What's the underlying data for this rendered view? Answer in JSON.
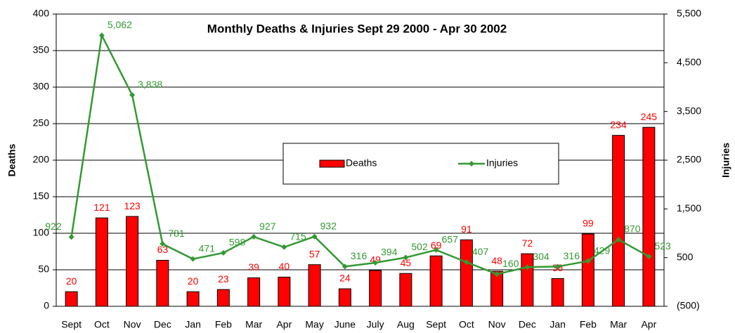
{
  "chart_data": {
    "type": "bar_line",
    "title": "Monthly Deaths & Injuries Sept 29 2000 - Apr 30  2002",
    "y_label": "Deaths",
    "y2_label": "Injuries",
    "categories": [
      "Sept",
      "Oct",
      "Nov",
      "Dec",
      "Jan",
      "Feb",
      "Mar",
      "Apr",
      "May",
      "June",
      "July",
      "Aug",
      "Sept",
      "Oct",
      "Nov",
      "Dec",
      "Jan",
      "Feb",
      "Mar",
      "Apr"
    ],
    "series": [
      {
        "name": "Deaths",
        "type": "bar",
        "color": "#ff0000",
        "values": [
          20,
          121,
          123,
          63,
          20,
          23,
          39,
          40,
          57,
          24,
          49,
          45,
          69,
          91,
          48,
          72,
          38,
          99,
          234,
          245
        ]
      },
      {
        "name": "Injuries",
        "type": "line",
        "axis": "y2",
        "color": "#339933",
        "values": [
          922,
          5062,
          3838,
          781,
          471,
          598,
          927,
          715,
          932,
          316,
          394,
          502,
          657,
          407,
          160,
          304,
          316,
          429,
          870,
          523
        ],
        "value_labels": [
          "922",
          "5,062",
          "3,838",
          "781",
          "471",
          "598",
          "927",
          "715",
          "932",
          "316",
          "394",
          "502",
          "657",
          "407",
          "160",
          "304",
          "316",
          "429",
          "870",
          "523"
        ]
      }
    ],
    "ylim": [
      0,
      400
    ],
    "yticks": [
      0,
      50,
      100,
      150,
      200,
      250,
      300,
      350,
      400
    ],
    "y2lim": [
      -500,
      5500
    ],
    "y2ticks": [
      {
        "value": -500,
        "label": "(500)"
      },
      500,
      {
        "value": 1500,
        "label": "1,500"
      },
      {
        "value": 2500,
        "label": "2,500"
      },
      {
        "value": 3500,
        "label": "3,500"
      },
      {
        "value": 4500,
        "label": "4,500"
      },
      {
        "value": 5500,
        "label": "5,500"
      }
    ],
    "grid": true
  }
}
